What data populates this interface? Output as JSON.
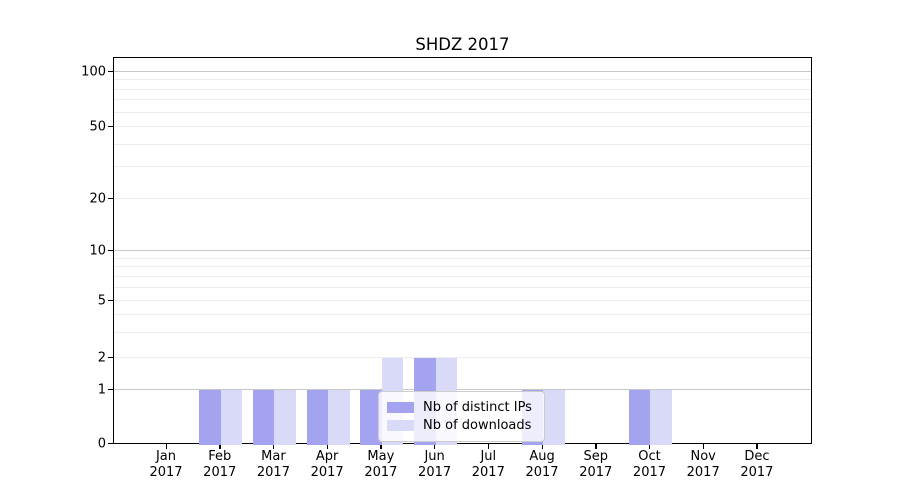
{
  "title": "SHDZ 2017",
  "legend": {
    "items": [
      {
        "label": "Nb of distinct IPs",
        "color": "#a3a3f0"
      },
      {
        "label": "Nb of downloads",
        "color": "#d9d9f8"
      }
    ]
  },
  "chart_data": {
    "type": "bar",
    "title": "SHDZ 2017",
    "categories": [
      "Jan",
      "Feb",
      "Mar",
      "Apr",
      "May",
      "Jun",
      "Jul",
      "Aug",
      "Sep",
      "Oct",
      "Nov",
      "Dec"
    ],
    "tick_year_line": "2017",
    "series": [
      {
        "name": "Nb of distinct IPs",
        "color": "#a3a3f0",
        "values": [
          0,
          1,
          1,
          1,
          1,
          2,
          0,
          1,
          0,
          1,
          0,
          0
        ]
      },
      {
        "name": "Nb of downloads",
        "color": "#d9d9f8",
        "values": [
          0,
          1,
          1,
          1,
          2,
          2,
          0,
          1,
          0,
          1,
          0,
          0
        ]
      }
    ],
    "xlabel": "",
    "ylabel": "",
    "yscale": "symlog",
    "yticks": [
      0,
      1,
      2,
      5,
      10,
      20,
      50,
      100
    ],
    "ylim": [
      0,
      115
    ],
    "grid": true,
    "legend_position": "lower center",
    "bar_style": "paired side-by-side, centered on month tick"
  }
}
